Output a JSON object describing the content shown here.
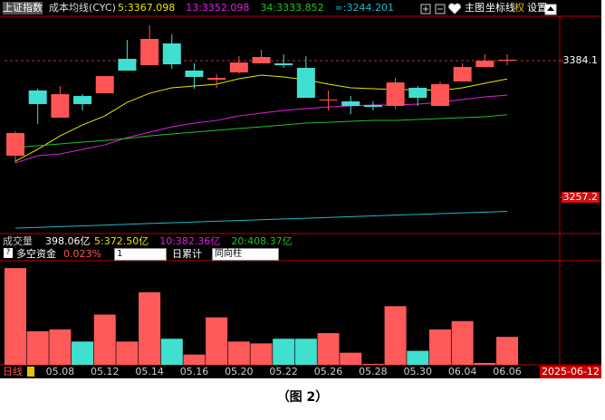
{
  "title": "上证指数",
  "indicator": "成本均线(CYC)",
  "toolbar": [
    "主图",
    "坐标线",
    "权",
    "设置"
  ],
  "chart_data": [
    {
      "type": "candlestick",
      "categories": [
        null,
        null,
        "05.08",
        null,
        "05.12",
        null,
        "05.14",
        null,
        "05.16",
        null,
        "05.20",
        null,
        "05.22",
        null,
        "05.26",
        null,
        "05.28",
        null,
        "05.30",
        null,
        "06.04",
        null,
        "06.06"
      ],
      "open": [
        3295.9,
        3356.4,
        3331.2,
        3351.3,
        3353.8,
        3385.8,
        3379.9,
        3400.1,
        3374.9,
        3366.4,
        3373.2,
        3381.6,
        3381.6,
        3377.4,
        3347.2,
        3346.3,
        3342.9,
        3342.1,
        3358.9,
        3342.1,
        3364.8,
        3378.2,
        3384.1
      ],
      "high": [
        3318.5,
        3358.1,
        3360.6,
        3353.0,
        3369.8,
        3403.4,
        3416.9,
        3408.5,
        3381.6,
        3371.5,
        3388.3,
        3394.2,
        3390.0,
        3388.3,
        3356.4,
        3351.3,
        3346.3,
        3368.1,
        3360.6,
        3364.8,
        3381.6,
        3390.0,
        3390.0
      ],
      "low": [
        3289.1,
        3325.3,
        3331.2,
        3337.9,
        3353.8,
        3374.9,
        3379.9,
        3376.5,
        3358.1,
        3358.9,
        3372.3,
        3381.6,
        3377.4,
        3349.6,
        3337.9,
        3334.5,
        3337.9,
        3339.6,
        3342.1,
        3342.1,
        3364.8,
        3378.2,
        3379.9
      ],
      "close": [
        3316.9,
        3343.8,
        3353.0,
        3343.8,
        3369.8,
        3374.9,
        3404.3,
        3380.7,
        3369.0,
        3368.1,
        3382.4,
        3387.5,
        3379.9,
        3349.6,
        3348.0,
        3342.1,
        3341.2,
        3363.9,
        3349.6,
        3362.3,
        3378.2,
        3384.1,
        3385.0
      ],
      "up_color": "#ff5555",
      "down_color": "#40e0d0",
      "series": [
        {
          "name": "5:3367.098",
          "color": "#e6e600",
          "values": [
            3290.8,
            3301.8,
            3314.3,
            3324.4,
            3332.8,
            3345.4,
            3353.8,
            3358.9,
            3360.6,
            3362.3,
            3367.3,
            3370.7,
            3369.0,
            3366.4,
            3362.3,
            3358.9,
            3358.1,
            3357.2,
            3357.2,
            3356.4,
            3358.9,
            3363.1,
            3367.1
          ]
        },
        {
          "name": "13:3352.098",
          "color": "#e020e0",
          "values": [
            3289.1,
            3295.9,
            3297.5,
            3301.8,
            3305.9,
            3312.7,
            3317.7,
            3322.7,
            3326.1,
            3328.6,
            3332.8,
            3335.4,
            3337.9,
            3339.6,
            3341.2,
            3342.1,
            3342.9,
            3342.9,
            3343.8,
            3345.4,
            3348.0,
            3350.5,
            3352.1
          ]
        },
        {
          "name": "34:3333.852",
          "color": "#22c022",
          "values": [
            3303.4,
            3305.1,
            3306.8,
            3308.5,
            3310.1,
            3311.8,
            3314.3,
            3316.0,
            3317.7,
            3319.4,
            3321.1,
            3322.7,
            3324.4,
            3326.1,
            3326.9,
            3327.8,
            3328.6,
            3328.6,
            3329.5,
            3330.3,
            3331.2,
            3332.0,
            3333.9
          ]
        },
        {
          "name": "∞:3244.201",
          "color": "#20b8c8",
          "values": [
            3228.6,
            3229.3,
            3230.0,
            3230.7,
            3231.4,
            3232.2,
            3232.9,
            3233.6,
            3234.3,
            3235.0,
            3235.7,
            3236.4,
            3237.1,
            3237.8,
            3238.5,
            3239.3,
            3240.0,
            3240.7,
            3241.4,
            3242.1,
            3242.8,
            3243.5,
            3244.2
          ]
        }
      ],
      "ylim": [
        3223.6,
        3425.3
      ],
      "yticks": [
        3384.1,
        3257.2
      ]
    },
    {
      "type": "bar",
      "label": "多空资金",
      "value_text": "0.023%",
      "period": "1",
      "mode": "日累计",
      "style": "同向柱",
      "volume_label": "成交量",
      "volume_value": "398.06亿",
      "volume_mas": [
        {
          "name": "5:372.50亿",
          "color": "#e6e600"
        },
        {
          "name": "10:382.36亿",
          "color": "#e020e0"
        },
        {
          "name": "20:408.37亿",
          "color": "#22c022"
        }
      ],
      "values": [
        104,
        36,
        38,
        25,
        54,
        25,
        78,
        28,
        11,
        51,
        25,
        23,
        28,
        28,
        34,
        13,
        1,
        63,
        15,
        38,
        47,
        2,
        30
      ],
      "colors": [
        "#ff5a5a",
        "#ff5a5a",
        "#ff5a5a",
        "#40e0d0",
        "#ff5a5a",
        "#ff5a5a",
        "#ff5a5a",
        "#40e0d0",
        "#ff5a5a",
        "#ff5a5a",
        "#ff5a5a",
        "#ff5a5a",
        "#40e0d0",
        "#40e0d0",
        "#ff5a5a",
        "#ff5a5a",
        "#ff5a5a",
        "#ff5a5a",
        "#40e0d0",
        "#ff5a5a",
        "#ff5a5a",
        "#ff5a5a",
        "#ff5a5a"
      ],
      "ylim": [
        0,
        110
      ]
    }
  ],
  "footer": {
    "period": "日线",
    "date": "2025-06-12"
  },
  "caption": "（图 2）"
}
